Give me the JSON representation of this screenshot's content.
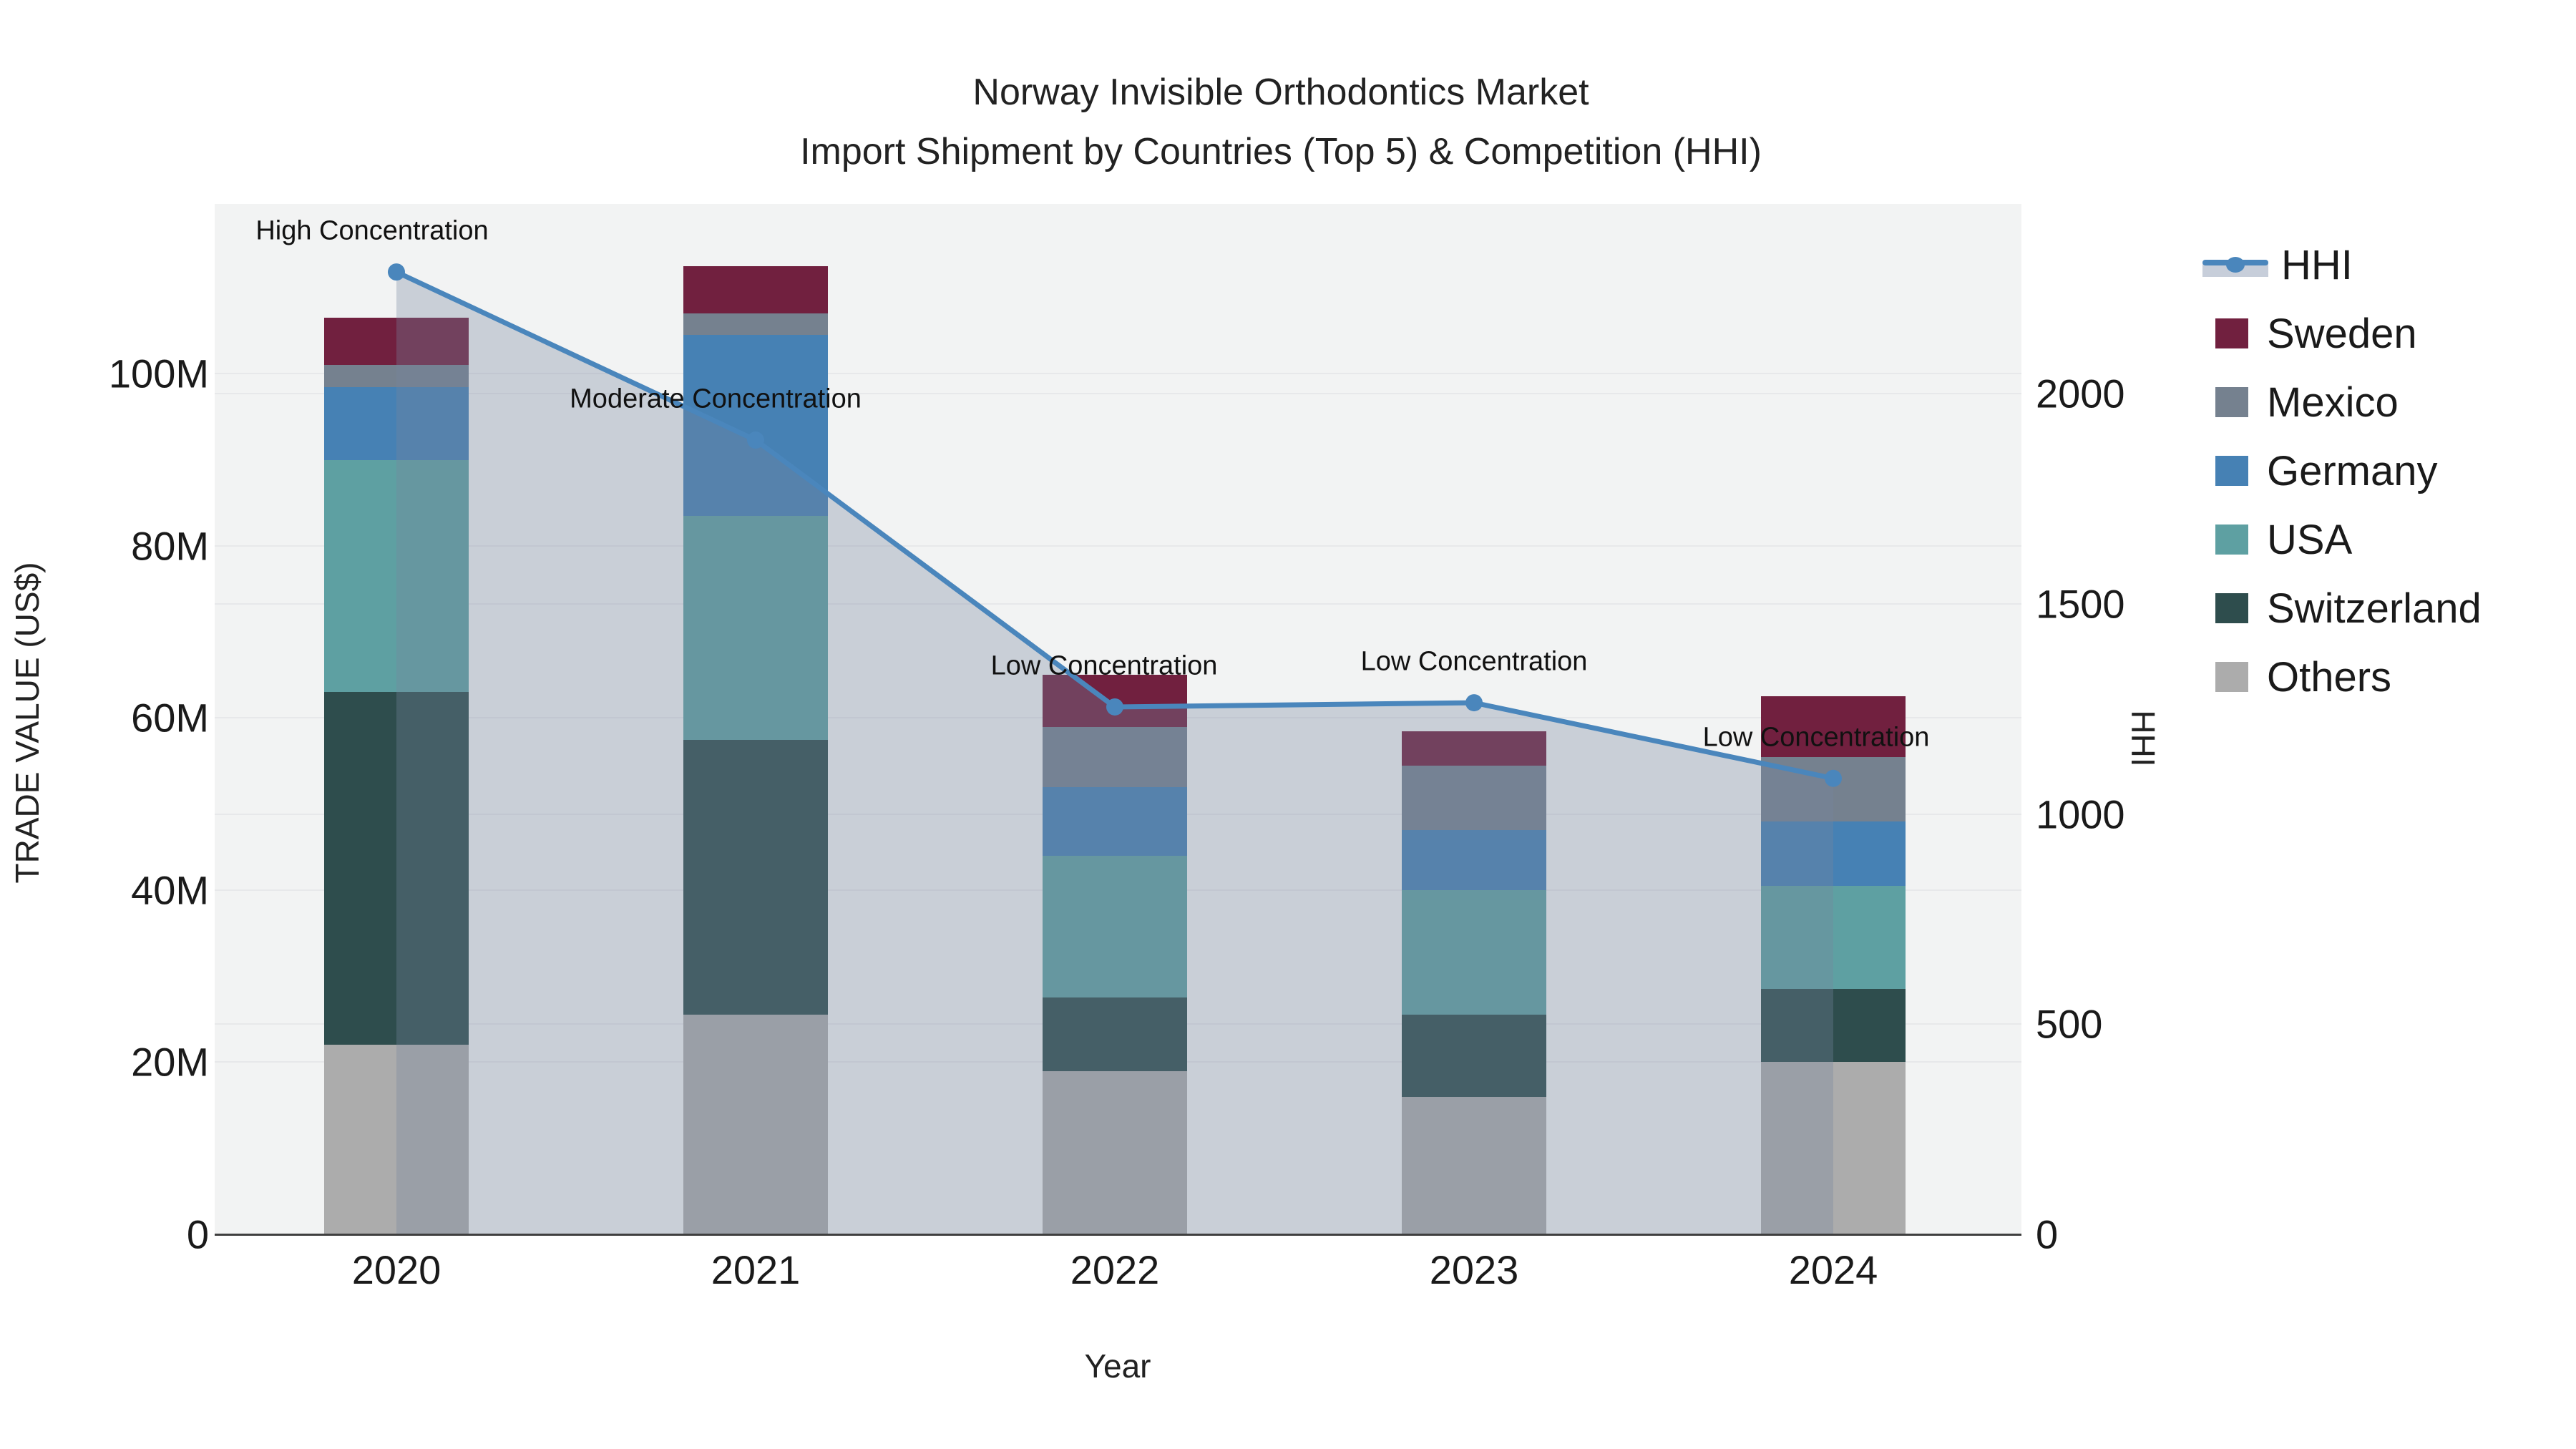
{
  "title": {
    "line1": "Norway Invisible Orthodontics Market",
    "line2": "Import Shipment by Countries (Top 5) & Competition (HHI)"
  },
  "chart_data": {
    "type": "bar",
    "subtype": "stacked-bars-with-line",
    "categories": [
      "2020",
      "2021",
      "2022",
      "2023",
      "2024"
    ],
    "series": [
      {
        "name": "Others",
        "color": "#acacac",
        "values": [
          22,
          25.5,
          19,
          16,
          20
        ]
      },
      {
        "name": "Switzerland",
        "color": "#2e4d4d",
        "values": [
          41,
          32,
          8.5,
          9.5,
          8.5
        ]
      },
      {
        "name": "USA",
        "color": "#5ea0a2",
        "values": [
          27,
          26,
          16.5,
          14.5,
          12
        ]
      },
      {
        "name": "Germany",
        "color": "#4681b4",
        "values": [
          8.5,
          21,
          8,
          7,
          7.5
        ]
      },
      {
        "name": "Mexico",
        "color": "#75818f",
        "values": [
          2.5,
          2.5,
          7,
          7.5,
          7.5
        ]
      },
      {
        "name": "Sweden",
        "color": "#71203f",
        "values": [
          5.5,
          5.5,
          6,
          4,
          7
        ]
      }
    ],
    "line_series": {
      "name": "HHI",
      "color": "#4a86bc",
      "fill_color": "rgba(118,134,158,0.33)",
      "values": [
        2290,
        1890,
        1255,
        1265,
        1085
      ],
      "axis": "right"
    },
    "annotations": [
      {
        "year": "2020",
        "text": "High Concentration"
      },
      {
        "year": "2021",
        "text": "Moderate Concentration"
      },
      {
        "year": "2022",
        "text": "Low Concentration"
      },
      {
        "year": "2023",
        "text": "Low Concentration"
      },
      {
        "year": "2024",
        "text": "Low Concentration"
      },
      {
        "year": "2024",
        "text": ""
      }
    ],
    "xlabel": "Year",
    "ylabel_left": "TRADE VALUE (US$)",
    "ylabel_right": "HHI",
    "yticks_left": [
      {
        "value": 0,
        "label": "0"
      },
      {
        "value": 20,
        "label": "20M"
      },
      {
        "value": 40,
        "label": "40M"
      },
      {
        "value": 60,
        "label": "60M"
      },
      {
        "value": 80,
        "label": "80M"
      },
      {
        "value": 100,
        "label": "100M"
      }
    ],
    "yticks_right": [
      {
        "value": 0,
        "label": "0"
      },
      {
        "value": 500,
        "label": "500"
      },
      {
        "value": 1000,
        "label": "1000"
      },
      {
        "value": 1500,
        "label": "1500"
      },
      {
        "value": 2000,
        "label": "2000"
      }
    ],
    "ylim_left": [
      0,
      119.75
    ],
    "ylim_right": [
      0,
      2452
    ],
    "grid": true,
    "legend_position": "right",
    "legend": [
      {
        "label": "HHI",
        "type": "line",
        "color": "#4a86bc",
        "band_color": "#c7ceda"
      },
      {
        "label": "Sweden",
        "type": "swatch",
        "color": "#71203f"
      },
      {
        "label": "Mexico",
        "type": "swatch",
        "color": "#75818f"
      },
      {
        "label": "Germany",
        "type": "swatch",
        "color": "#4681b4"
      },
      {
        "label": "USA",
        "type": "swatch",
        "color": "#5ea0a2"
      },
      {
        "label": "Switzerland",
        "type": "swatch",
        "color": "#2e4d4d"
      },
      {
        "label": "Others",
        "type": "swatch",
        "color": "#acacac"
      }
    ],
    "colors": {
      "plot_background": "#f2f3f3",
      "page_background": "#ffffff",
      "gridline": "#e7e8ea",
      "axis_line": "#3f3f3f",
      "text": "#1a1a1a"
    }
  }
}
